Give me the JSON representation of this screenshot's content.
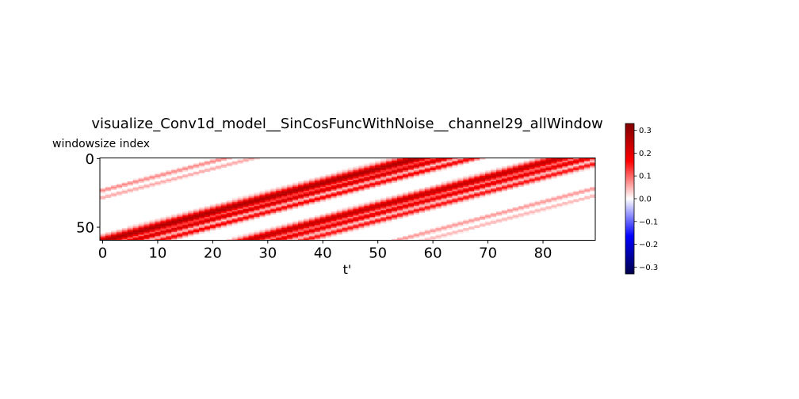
{
  "chart_data": {
    "type": "heatmap",
    "title": "visualize_Conv1d_model__SinCosFuncWithNoise__channel29_allWindow",
    "xlabel": "t'",
    "ylabel": "windowsize index",
    "xlim": [
      0,
      89
    ],
    "ylim": [
      0,
      59
    ],
    "x_ticks": [
      0,
      10,
      20,
      30,
      40,
      50,
      60,
      70,
      80
    ],
    "y_ticks": [
      0,
      50
    ],
    "colormap": "seismic",
    "colorbar": {
      "vmin": -0.33,
      "vmax": 0.33,
      "ticks": [
        0.3,
        0.2,
        0.1,
        0.0,
        -0.1,
        -0.2,
        -0.3
      ],
      "tick_labels": [
        "0.3",
        "0.2",
        "0.1",
        "0.0",
        "−0.1",
        "−0.2",
        "−0.3"
      ]
    },
    "n_rows": 60,
    "n_cols": 90,
    "bands": [
      {
        "x_at_row0": 57,
        "slope": -0.95,
        "width": 2.2,
        "value": 0.27
      },
      {
        "x_at_row0": 62,
        "slope": -0.95,
        "width": 1.4,
        "value": 0.22
      },
      {
        "x_at_row0": 67,
        "slope": -0.95,
        "width": 1.2,
        "value": 0.18
      },
      {
        "x_at_row0": 83,
        "slope": -0.95,
        "width": 2.0,
        "value": 0.24
      },
      {
        "x_at_row0": 88,
        "slope": -0.95,
        "width": 1.4,
        "value": 0.2
      },
      {
        "x_at_row0": 93,
        "slope": -0.95,
        "width": 1.2,
        "value": 0.16
      },
      {
        "x_at_row0": 22,
        "slope": -0.95,
        "width": 0.9,
        "value": 0.08
      },
      {
        "x_at_row0": 27,
        "slope": -0.95,
        "width": 0.8,
        "value": 0.06
      },
      {
        "x_at_row0": 110,
        "slope": -0.95,
        "width": 0.9,
        "value": 0.07
      },
      {
        "x_at_row0": 115,
        "slope": -0.95,
        "width": 0.8,
        "value": 0.05
      }
    ]
  }
}
